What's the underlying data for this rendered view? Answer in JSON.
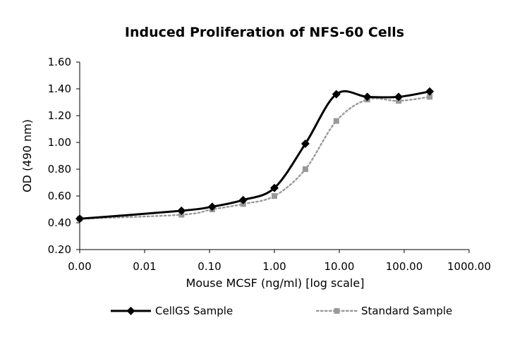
{
  "chart_data": {
    "type": "line",
    "title": "Induced Proliferation of NFS-60 Cells",
    "xlabel": "Mouse MCSF (ng/ml) [log scale]",
    "ylabel": "OD (490 nm)",
    "x_scale": "log",
    "x_ticks": [
      "0.00",
      "0.01",
      "0.10",
      "1.00",
      "10.00",
      "100.00",
      "1000.00"
    ],
    "y_ticks": [
      "0.20",
      "0.40",
      "0.60",
      "0.80",
      "1.00",
      "1.20",
      "1.40",
      "1.60"
    ],
    "xlim": [
      0.001,
      1000
    ],
    "ylim": [
      0.2,
      1.6
    ],
    "grid": false,
    "legend_position": "bottom",
    "series": [
      {
        "name": "CellGS Sample",
        "color": "#000000",
        "line_style": "solid",
        "marker": "diamond",
        "x": [
          0.001,
          0.037,
          0.11,
          0.33,
          1.0,
          3.0,
          9.0,
          27.0,
          82.0,
          247.0
        ],
        "y": [
          0.43,
          0.49,
          0.52,
          0.57,
          0.66,
          0.99,
          1.36,
          1.34,
          1.34,
          1.38
        ]
      },
      {
        "name": "Standard Sample",
        "color": "#999999",
        "line_style": "dotted",
        "marker": "square",
        "x": [
          0.001,
          0.037,
          0.11,
          0.33,
          1.0,
          3.0,
          9.0,
          27.0,
          82.0,
          247.0
        ],
        "y": [
          0.43,
          0.46,
          0.5,
          0.54,
          0.6,
          0.8,
          1.16,
          1.32,
          1.31,
          1.34
        ]
      }
    ]
  }
}
